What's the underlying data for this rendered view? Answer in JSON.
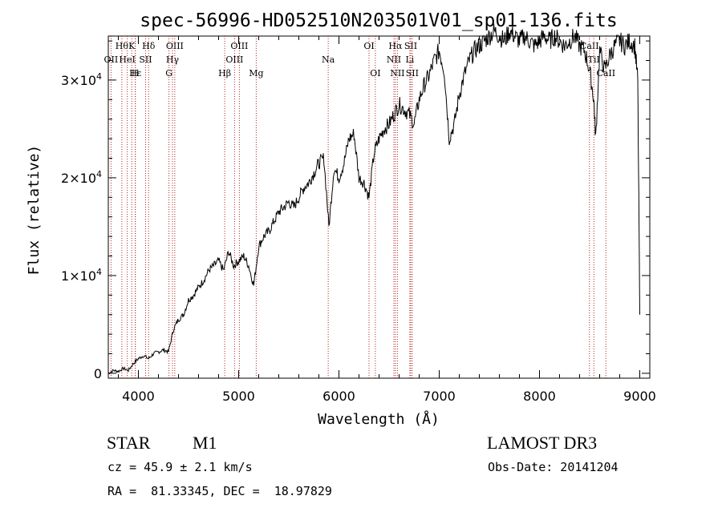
{
  "chart_data": {
    "type": "line",
    "title": "spec-56996-HD052510N203501V01_sp01-136.fits",
    "xlabel": "Wavelength (Å)",
    "ylabel": "Flux (relative)",
    "xlim": [
      3700,
      9100
    ],
    "ylim": [
      -500,
      34500
    ],
    "x_ticks": [
      4000,
      5000,
      6000,
      7000,
      8000,
      9000
    ],
    "x_tick_labels": [
      "4000",
      "5000",
      "6000",
      "7000",
      "8000",
      "9000"
    ],
    "y_ticks": [
      {
        "value": 0,
        "mantissa": "0",
        "exp": ""
      },
      {
        "value": 10000,
        "mantissa": "1×10",
        "exp": "4"
      },
      {
        "value": 20000,
        "mantissa": "2×10",
        "exp": "4"
      },
      {
        "value": 30000,
        "mantissa": "3×10",
        "exp": "4"
      }
    ],
    "series": [
      {
        "name": "flux",
        "points": [
          [
            3700,
            0
          ],
          [
            3750,
            300
          ],
          [
            3800,
            200
          ],
          [
            3850,
            500
          ],
          [
            3900,
            300
          ],
          [
            3950,
            1000
          ],
          [
            4000,
            1500
          ],
          [
            4050,
            1800
          ],
          [
            4100,
            1500
          ],
          [
            4150,
            2000
          ],
          [
            4200,
            2200
          ],
          [
            4250,
            2400
          ],
          [
            4300,
            2200
          ],
          [
            4350,
            4500
          ],
          [
            4400,
            5500
          ],
          [
            4450,
            6000
          ],
          [
            4500,
            7500
          ],
          [
            4550,
            8000
          ],
          [
            4600,
            8800
          ],
          [
            4650,
            9500
          ],
          [
            4700,
            10500
          ],
          [
            4750,
            11000
          ],
          [
            4800,
            11500
          ],
          [
            4850,
            10500
          ],
          [
            4900,
            12500
          ],
          [
            4950,
            11000
          ],
          [
            5000,
            11500
          ],
          [
            5050,
            12000
          ],
          [
            5100,
            11000
          ],
          [
            5150,
            9000
          ],
          [
            5200,
            13000
          ],
          [
            5250,
            14000
          ],
          [
            5300,
            14500
          ],
          [
            5350,
            15500
          ],
          [
            5400,
            16500
          ],
          [
            5450,
            17000
          ],
          [
            5500,
            17500
          ],
          [
            5550,
            17000
          ],
          [
            5600,
            18000
          ],
          [
            5650,
            19000
          ],
          [
            5700,
            19500
          ],
          [
            5750,
            20500
          ],
          [
            5800,
            21500
          ],
          [
            5850,
            22000
          ],
          [
            5900,
            15000
          ],
          [
            5950,
            21000
          ],
          [
            6000,
            20000
          ],
          [
            6050,
            21500
          ],
          [
            6100,
            24000
          ],
          [
            6150,
            24500
          ],
          [
            6200,
            20000
          ],
          [
            6250,
            19500
          ],
          [
            6300,
            18000
          ],
          [
            6350,
            22500
          ],
          [
            6400,
            24000
          ],
          [
            6450,
            25000
          ],
          [
            6500,
            25500
          ],
          [
            6550,
            26500
          ],
          [
            6600,
            27500
          ],
          [
            6650,
            27000
          ],
          [
            6700,
            26500
          ],
          [
            6750,
            25500
          ],
          [
            6800,
            28000
          ],
          [
            6850,
            29500
          ],
          [
            6900,
            30500
          ],
          [
            6950,
            32000
          ],
          [
            7000,
            33000
          ],
          [
            7050,
            31000
          ],
          [
            7100,
            24000
          ],
          [
            7150,
            25500
          ],
          [
            7200,
            28500
          ],
          [
            7250,
            30500
          ],
          [
            7300,
            32000
          ],
          [
            7350,
            33000
          ],
          [
            7400,
            33500
          ],
          [
            7450,
            34000
          ],
          [
            7500,
            34500
          ],
          [
            7550,
            35000
          ],
          [
            7600,
            34500
          ],
          [
            7650,
            34000
          ],
          [
            7700,
            35000
          ],
          [
            7750,
            34500
          ],
          [
            7800,
            34000
          ],
          [
            7850,
            34500
          ],
          [
            7900,
            34000
          ],
          [
            7950,
            33500
          ],
          [
            8000,
            34000
          ],
          [
            8050,
            34500
          ],
          [
            8100,
            34000
          ],
          [
            8150,
            34500
          ],
          [
            8200,
            34000
          ],
          [
            8250,
            33500
          ],
          [
            8300,
            34000
          ],
          [
            8350,
            34500
          ],
          [
            8400,
            33500
          ],
          [
            8450,
            33000
          ],
          [
            8500,
            31000
          ],
          [
            8542,
            28000
          ],
          [
            8560,
            24000
          ],
          [
            8600,
            33000
          ],
          [
            8650,
            31000
          ],
          [
            8700,
            32500
          ],
          [
            8750,
            33500
          ],
          [
            8800,
            34000
          ],
          [
            8850,
            33500
          ],
          [
            8900,
            34000
          ],
          [
            8950,
            33500
          ],
          [
            8980,
            30000
          ],
          [
            9000,
            6000
          ]
        ]
      }
    ],
    "line_markers": [
      {
        "wavelength": 3727,
        "label": "OII",
        "row": 2
      },
      {
        "wavelength": 3835,
        "label": "Hθ",
        "row": 1
      },
      {
        "wavelength": 3889,
        "label": "HeI",
        "row": 2
      },
      {
        "wavelength": 3934,
        "label": "K",
        "row": 1
      },
      {
        "wavelength": 3970,
        "label": "Hε",
        "row": 3
      },
      {
        "wavelength": 3968,
        "label": "H",
        "row": 3
      },
      {
        "wavelength": 4072,
        "label": "SII",
        "row": 2
      },
      {
        "wavelength": 4102,
        "label": "Hδ",
        "row": 1
      },
      {
        "wavelength": 4305,
        "label": "G",
        "row": 3
      },
      {
        "wavelength": 4340,
        "label": "Hγ",
        "row": 2
      },
      {
        "wavelength": 4363,
        "label": "OIII",
        "row": 1
      },
      {
        "wavelength": 4861,
        "label": "Hβ",
        "row": 3
      },
      {
        "wavelength": 4959,
        "label": "OIII",
        "row": 2
      },
      {
        "wavelength": 5007,
        "label": "OIII",
        "row": 1
      },
      {
        "wavelength": 5175,
        "label": "Mg",
        "row": 3
      },
      {
        "wavelength": 5893,
        "label": "Na",
        "row": 2
      },
      {
        "wavelength": 6300,
        "label": "OI",
        "row": 1
      },
      {
        "wavelength": 6363,
        "label": "OI",
        "row": 3
      },
      {
        "wavelength": 6548,
        "label": "NII",
        "row": 2
      },
      {
        "wavelength": 6563,
        "label": "Hα",
        "row": 1
      },
      {
        "wavelength": 6583,
        "label": "NII",
        "row": 3
      },
      {
        "wavelength": 6707,
        "label": "Li",
        "row": 2
      },
      {
        "wavelength": 6716,
        "label": "SII",
        "row": 1
      },
      {
        "wavelength": 6731,
        "label": "SII",
        "row": 3
      },
      {
        "wavelength": 8498,
        "label": "CaII",
        "row": 1
      },
      {
        "wavelength": 8542,
        "label": "TiI",
        "row": 2
      },
      {
        "wavelength": 8662,
        "label": "CaII",
        "row": 3
      }
    ]
  },
  "info": {
    "object_class": "STAR",
    "subclass": "M1",
    "survey": "LAMOST DR3",
    "redshift_line": "cz = 45.9 ± 2.1 km/s",
    "obs_date_line": "Obs-Date: 20141204",
    "coords_line": "RA =  81.33345, DEC =  18.97829"
  }
}
